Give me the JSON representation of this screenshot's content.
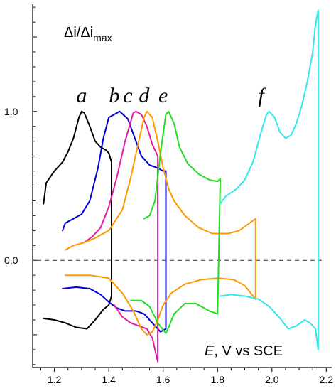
{
  "chart_data": {
    "type": "line",
    "y_title": {
      "main": "Δi/Δi",
      "sub": "max"
    },
    "x_title": {
      "italic": "E",
      "rest": ", V vs SCE"
    },
    "xlim": [
      1.12,
      2.22
    ],
    "ylim": [
      -0.72,
      1.72
    ],
    "x_ticks": [
      "1.2",
      "1.4",
      "1.6",
      "1.8",
      "2.0",
      "2.2"
    ],
    "y_ticks": [
      {
        "value": 0.0,
        "label": "0.0"
      },
      {
        "value": 1.0,
        "label": "1.0"
      }
    ],
    "reference_line": {
      "y": 0.0,
      "style": "dashed",
      "color": "#333333"
    },
    "curve_labels": [
      {
        "text": "a",
        "x": 1.3,
        "y": 1.06
      },
      {
        "text": "b",
        "x": 1.42,
        "y": 1.06
      },
      {
        "text": "c",
        "x": 1.47,
        "y": 1.06
      },
      {
        "text": "d",
        "x": 1.53,
        "y": 1.06
      },
      {
        "text": "e",
        "x": 1.6,
        "y": 1.06
      },
      {
        "text": "f",
        "x": 1.96,
        "y": 1.06
      }
    ],
    "series": [
      {
        "name": "a",
        "color": "#000000",
        "points": [
          [
            1.16,
            0.38
          ],
          [
            1.17,
            0.52
          ],
          [
            1.2,
            0.6
          ],
          [
            1.23,
            0.66
          ],
          [
            1.25,
            0.73
          ],
          [
            1.27,
            0.82
          ],
          [
            1.29,
            0.96
          ],
          [
            1.3,
            1.0
          ],
          [
            1.31,
            0.99
          ],
          [
            1.33,
            0.9
          ],
          [
            1.35,
            0.8
          ],
          [
            1.37,
            0.76
          ],
          [
            1.39,
            0.74
          ],
          [
            1.4,
            0.72
          ],
          [
            1.41,
            0.66
          ],
          [
            1.41,
            -0.24
          ],
          [
            1.4,
            -0.3
          ],
          [
            1.38,
            -0.33
          ],
          [
            1.35,
            -0.4
          ],
          [
            1.32,
            -0.46
          ],
          [
            1.28,
            -0.45
          ],
          [
            1.24,
            -0.42
          ],
          [
            1.2,
            -0.4
          ],
          [
            1.16,
            -0.39
          ]
        ]
      },
      {
        "name": "b",
        "color": "#0000dd",
        "points": [
          [
            1.23,
            0.2
          ],
          [
            1.24,
            0.25
          ],
          [
            1.27,
            0.28
          ],
          [
            1.3,
            0.31
          ],
          [
            1.33,
            0.4
          ],
          [
            1.36,
            0.62
          ],
          [
            1.38,
            0.82
          ],
          [
            1.4,
            0.96
          ],
          [
            1.44,
            1.0
          ],
          [
            1.47,
            0.95
          ],
          [
            1.5,
            0.8
          ],
          [
            1.52,
            0.7
          ],
          [
            1.55,
            0.64
          ],
          [
            1.58,
            0.62
          ],
          [
            1.6,
            0.6
          ],
          [
            1.61,
            0.6
          ],
          [
            1.61,
            -0.46
          ],
          [
            1.59,
            -0.48
          ],
          [
            1.56,
            -0.42
          ],
          [
            1.53,
            -0.36
          ],
          [
            1.5,
            -0.34
          ],
          [
            1.46,
            -0.34
          ],
          [
            1.43,
            -0.32
          ],
          [
            1.4,
            -0.28
          ],
          [
            1.37,
            -0.23
          ],
          [
            1.33,
            -0.19
          ],
          [
            1.28,
            -0.18
          ],
          [
            1.23,
            -0.19
          ]
        ]
      },
      {
        "name": "c",
        "color": "#e020a0",
        "points": [
          [
            1.31,
            0.12
          ],
          [
            1.34,
            0.16
          ],
          [
            1.37,
            0.22
          ],
          [
            1.4,
            0.36
          ],
          [
            1.43,
            0.56
          ],
          [
            1.46,
            0.8
          ],
          [
            1.49,
            0.99
          ],
          [
            1.5,
            1.0
          ],
          [
            1.52,
            0.98
          ],
          [
            1.54,
            0.9
          ],
          [
            1.56,
            0.78
          ],
          [
            1.58,
            0.7
          ],
          [
            1.58,
            -0.68
          ],
          [
            1.57,
            -0.6
          ],
          [
            1.56,
            -0.52
          ],
          [
            1.54,
            -0.46
          ],
          [
            1.51,
            -0.44
          ],
          [
            1.48,
            -0.42
          ],
          [
            1.45,
            -0.38
          ],
          [
            1.42,
            -0.3
          ]
        ]
      },
      {
        "name": "d",
        "color": "#ff9900",
        "points": [
          [
            1.24,
            0.07
          ],
          [
            1.27,
            0.1
          ],
          [
            1.31,
            0.12
          ],
          [
            1.35,
            0.15
          ],
          [
            1.4,
            0.2
          ],
          [
            1.45,
            0.34
          ],
          [
            1.48,
            0.55
          ],
          [
            1.51,
            0.8
          ],
          [
            1.53,
            0.96
          ],
          [
            1.54,
            1.0
          ],
          [
            1.56,
            0.96
          ],
          [
            1.58,
            0.8
          ],
          [
            1.6,
            0.62
          ],
          [
            1.62,
            0.48
          ],
          [
            1.64,
            0.4
          ],
          [
            1.68,
            0.3
          ],
          [
            1.73,
            0.22
          ],
          [
            1.78,
            0.18
          ],
          [
            1.84,
            0.18
          ],
          [
            1.88,
            0.2
          ],
          [
            1.91,
            0.24
          ],
          [
            1.94,
            0.28
          ],
          [
            1.94,
            -0.26
          ],
          [
            1.9,
            -0.17
          ],
          [
            1.86,
            -0.13
          ],
          [
            1.8,
            -0.12
          ],
          [
            1.74,
            -0.13
          ],
          [
            1.68,
            -0.16
          ],
          [
            1.63,
            -0.22
          ],
          [
            1.6,
            -0.3
          ],
          [
            1.58,
            -0.4
          ],
          [
            1.56,
            -0.48
          ],
          [
            1.54,
            -0.5
          ],
          [
            1.52,
            -0.46
          ],
          [
            1.49,
            -0.34
          ],
          [
            1.45,
            -0.22
          ],
          [
            1.4,
            -0.12
          ],
          [
            1.33,
            -0.1
          ],
          [
            1.24,
            -0.1
          ]
        ]
      },
      {
        "name": "e",
        "color": "#22dd22",
        "points": [
          [
            1.53,
            0.28
          ],
          [
            1.55,
            0.3
          ],
          [
            1.57,
            0.4
          ],
          [
            1.59,
            0.72
          ],
          [
            1.61,
            0.98
          ],
          [
            1.62,
            1.0
          ],
          [
            1.64,
            0.92
          ],
          [
            1.66,
            0.76
          ],
          [
            1.69,
            0.65
          ],
          [
            1.73,
            0.58
          ],
          [
            1.77,
            0.54
          ],
          [
            1.8,
            0.53
          ],
          [
            1.81,
            0.55
          ],
          [
            1.8,
            -0.36
          ],
          [
            1.77,
            -0.34
          ],
          [
            1.72,
            -0.29
          ],
          [
            1.68,
            -0.29
          ],
          [
            1.64,
            -0.36
          ],
          [
            1.62,
            -0.45
          ],
          [
            1.61,
            -0.49
          ],
          [
            1.58,
            -0.42
          ],
          [
            1.55,
            -0.31
          ],
          [
            1.52,
            -0.27
          ],
          [
            1.48,
            -0.27
          ]
        ]
      },
      {
        "name": "f",
        "color": "#33e8e8",
        "points": [
          [
            1.81,
            0.38
          ],
          [
            1.83,
            0.43
          ],
          [
            1.87,
            0.48
          ],
          [
            1.9,
            0.54
          ],
          [
            1.93,
            0.66
          ],
          [
            1.96,
            0.86
          ],
          [
            1.98,
            0.98
          ],
          [
            1.99,
            1.0
          ],
          [
            2.01,
            0.96
          ],
          [
            2.03,
            0.86
          ],
          [
            2.05,
            0.82
          ],
          [
            2.07,
            0.84
          ],
          [
            2.09,
            0.92
          ],
          [
            2.11,
            1.04
          ],
          [
            2.13,
            1.2
          ],
          [
            2.15,
            1.4
          ],
          [
            2.16,
            1.58
          ],
          [
            2.17,
            1.68
          ],
          [
            2.17,
            -0.6
          ],
          [
            2.16,
            -0.46
          ],
          [
            2.14,
            -0.42
          ],
          [
            2.12,
            -0.4
          ],
          [
            2.09,
            -0.44
          ],
          [
            2.06,
            -0.46
          ],
          [
            2.03,
            -0.39
          ],
          [
            1.99,
            -0.31
          ],
          [
            1.95,
            -0.26
          ],
          [
            1.9,
            -0.24
          ],
          [
            1.85,
            -0.23
          ],
          [
            1.81,
            -0.24
          ]
        ]
      }
    ]
  }
}
